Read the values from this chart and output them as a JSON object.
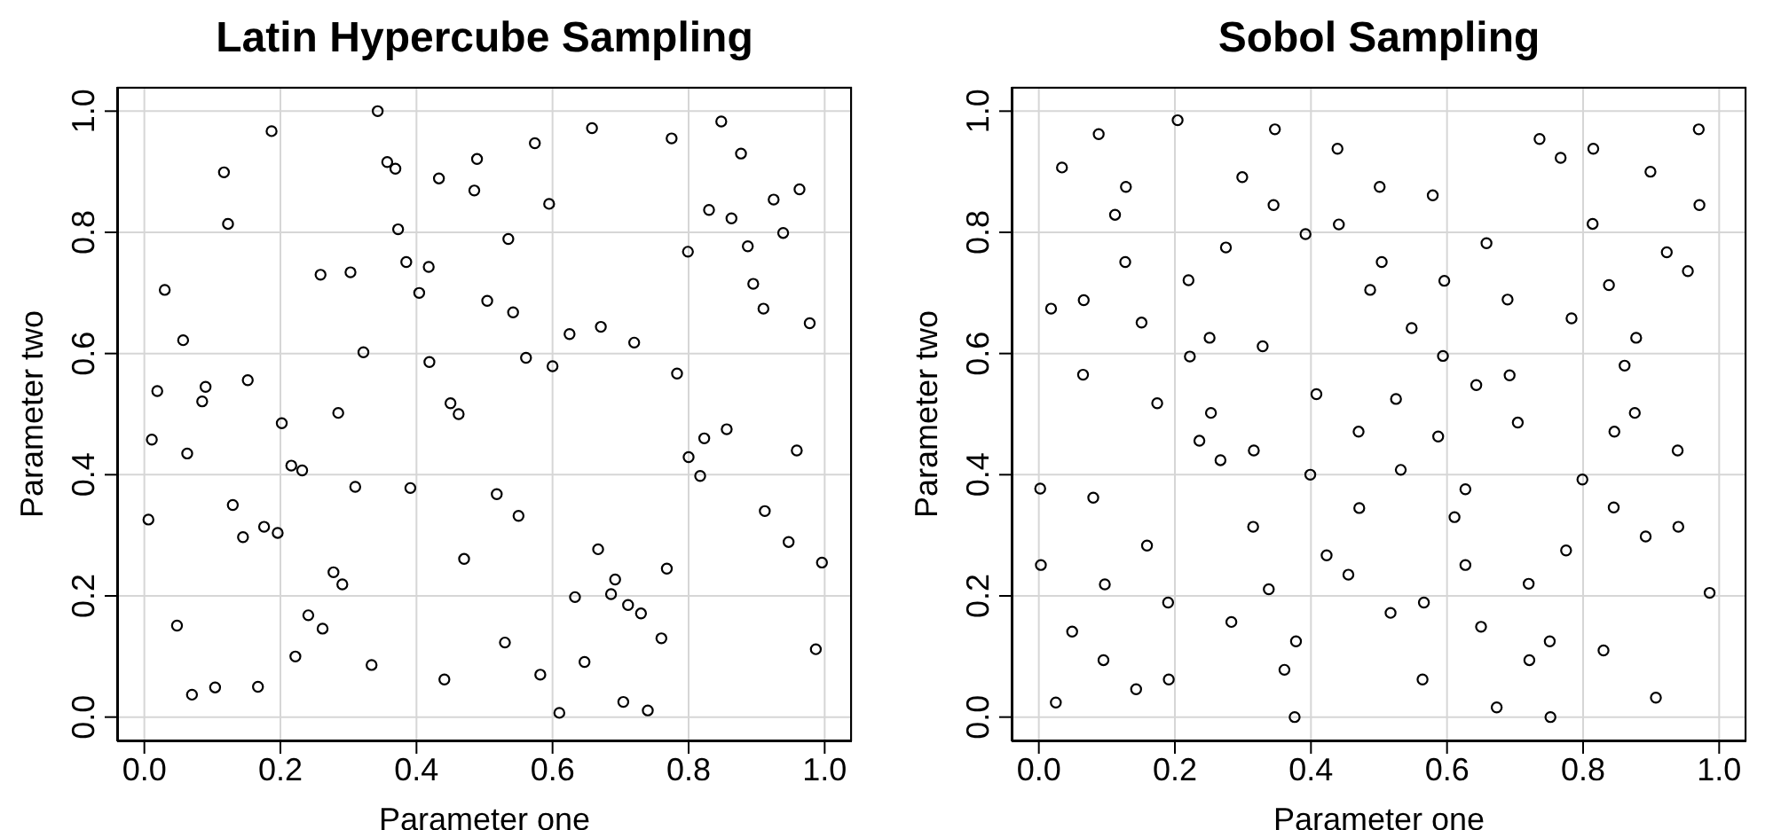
{
  "chart_data": [
    {
      "type": "scatter",
      "title": "Latin Hypercube Sampling",
      "xlabel": "Parameter one",
      "ylabel": "Parameter two",
      "color": "#000000",
      "marker": "circle",
      "grid": true,
      "xlim": [
        -0.04,
        1.04
      ],
      "ylim": [
        -0.04,
        1.04
      ],
      "xticks": [
        {
          "value": 0,
          "label": "0.0"
        },
        {
          "value": 0.2,
          "label": "0.2"
        },
        {
          "value": 0.4,
          "label": "0.4"
        },
        {
          "value": 0.6,
          "label": "0.6"
        },
        {
          "value": 0.8,
          "label": "0.8"
        },
        {
          "value": 1,
          "label": "1.0"
        }
      ],
      "yticks": [
        {
          "value": 0,
          "label": "0.0"
        },
        {
          "value": 0.2,
          "label": "0.2"
        },
        {
          "value": 0.4,
          "label": "0.4"
        },
        {
          "value": 0.6,
          "label": "0.6"
        },
        {
          "value": 0.8,
          "label": "0.8"
        },
        {
          "value": 1,
          "label": "1.0"
        }
      ],
      "x": [
        0.343,
        0.187,
        0.117,
        0.357,
        0.369,
        0.433,
        0.489,
        0.485,
        0.574,
        0.658,
        0.775,
        0.848,
        0.877,
        0.963,
        0.925,
        0.83,
        0.863,
        0.595,
        0.123,
        0.373,
        0.535,
        0.939,
        0.799,
        0.887,
        0.385,
        0.418,
        0.259,
        0.303,
        0.03,
        0.404,
        0.895,
        0.504,
        0.542,
        0.91,
        0.978,
        0.625,
        0.671,
        0.72,
        0.057,
        0.322,
        0.419,
        0.561,
        0.6,
        0.783,
        0.019,
        0.09,
        0.085,
        0.152,
        0.285,
        0.45,
        0.462,
        0.202,
        0.011,
        0.063,
        0.216,
        0.232,
        0.31,
        0.391,
        0.518,
        0.55,
        0.006,
        0.13,
        0.145,
        0.176,
        0.196,
        0.8,
        0.823,
        0.856,
        0.817,
        0.959,
        0.912,
        0.947,
        0.996,
        0.47,
        0.278,
        0.291,
        0.667,
        0.768,
        0.692,
        0.686,
        0.711,
        0.73,
        0.633,
        0.241,
        0.048,
        0.262,
        0.76,
        0.53,
        0.222,
        0.334,
        0.647,
        0.987,
        0.441,
        0.582,
        0.07,
        0.104,
        0.167,
        0.704,
        0.74,
        0.61
      ],
      "values": [
        1.0,
        0.967,
        0.899,
        0.916,
        0.905,
        0.889,
        0.921,
        0.869,
        0.947,
        0.972,
        0.955,
        0.983,
        0.93,
        0.871,
        0.854,
        0.837,
        0.823,
        0.847,
        0.814,
        0.805,
        0.789,
        0.799,
        0.768,
        0.777,
        0.751,
        0.743,
        0.73,
        0.734,
        0.705,
        0.7,
        0.715,
        0.687,
        0.668,
        0.674,
        0.65,
        0.632,
        0.644,
        0.618,
        0.622,
        0.602,
        0.586,
        0.593,
        0.579,
        0.567,
        0.538,
        0.545,
        0.521,
        0.556,
        0.502,
        0.518,
        0.5,
        0.485,
        0.458,
        0.435,
        0.415,
        0.407,
        0.38,
        0.378,
        0.368,
        0.332,
        0.326,
        0.35,
        0.297,
        0.314,
        0.304,
        0.429,
        0.46,
        0.475,
        0.398,
        0.44,
        0.34,
        0.289,
        0.255,
        0.261,
        0.239,
        0.219,
        0.277,
        0.245,
        0.227,
        0.203,
        0.185,
        0.171,
        0.198,
        0.168,
        0.151,
        0.146,
        0.13,
        0.123,
        0.1,
        0.086,
        0.091,
        0.112,
        0.062,
        0.07,
        0.037,
        0.049,
        0.05,
        0.025,
        0.011,
        0.007
      ]
    },
    {
      "type": "scatter",
      "title": "Sobol Sampling",
      "xlabel": "Parameter one",
      "ylabel": "Parameter two",
      "color": "#000000",
      "marker": "circle",
      "grid": true,
      "xlim": [
        -0.04,
        1.04
      ],
      "ylim": [
        -0.04,
        1.04
      ],
      "xticks": [
        {
          "value": 0,
          "label": "0.0"
        },
        {
          "value": 0.2,
          "label": "0.2"
        },
        {
          "value": 0.4,
          "label": "0.4"
        },
        {
          "value": 0.6,
          "label": "0.6"
        },
        {
          "value": 0.8,
          "label": "0.8"
        },
        {
          "value": 1,
          "label": "1.0"
        }
      ],
      "yticks": [
        {
          "value": 0,
          "label": "0.0"
        },
        {
          "value": 0.2,
          "label": "0.2"
        },
        {
          "value": 0.4,
          "label": "0.4"
        },
        {
          "value": 0.6,
          "label": "0.6"
        },
        {
          "value": 0.8,
          "label": "0.8"
        },
        {
          "value": 1,
          "label": "1.0"
        }
      ],
      "x": [
        0.204,
        0.088,
        0.347,
        0.439,
        0.736,
        0.767,
        0.815,
        0.97,
        0.034,
        0.899,
        0.299,
        0.128,
        0.501,
        0.579,
        0.345,
        0.971,
        0.112,
        0.441,
        0.814,
        0.392,
        0.658,
        0.275,
        0.923,
        0.127,
        0.504,
        0.954,
        0.22,
        0.596,
        0.487,
        0.838,
        0.066,
        0.689,
        0.018,
        0.151,
        0.783,
        0.548,
        0.251,
        0.878,
        0.329,
        0.222,
        0.594,
        0.861,
        0.065,
        0.692,
        0.643,
        0.174,
        0.408,
        0.525,
        0.253,
        0.876,
        0.704,
        0.236,
        0.267,
        0.316,
        0.47,
        0.587,
        0.846,
        0.939,
        0.399,
        0.532,
        0.799,
        0.002,
        0.08,
        0.627,
        0.471,
        0.845,
        0.611,
        0.315,
        0.892,
        0.94,
        0.159,
        0.423,
        0.775,
        0.003,
        0.627,
        0.097,
        0.455,
        0.72,
        0.338,
        0.986,
        0.19,
        0.566,
        0.517,
        0.283,
        0.049,
        0.65,
        0.378,
        0.751,
        0.095,
        0.721,
        0.83,
        0.361,
        0.143,
        0.191,
        0.564,
        0.025,
        0.907,
        0.673,
        0.376,
        0.752
      ],
      "values": [
        0.985,
        0.962,
        0.97,
        0.938,
        0.954,
        0.923,
        0.938,
        0.97,
        0.907,
        0.9,
        0.891,
        0.875,
        0.875,
        0.861,
        0.845,
        0.845,
        0.829,
        0.813,
        0.814,
        0.797,
        0.782,
        0.775,
        0.767,
        0.751,
        0.751,
        0.736,
        0.721,
        0.72,
        0.705,
        0.713,
        0.688,
        0.689,
        0.674,
        0.651,
        0.658,
        0.642,
        0.626,
        0.626,
        0.612,
        0.595,
        0.596,
        0.58,
        0.565,
        0.564,
        0.548,
        0.518,
        0.533,
        0.525,
        0.502,
        0.502,
        0.486,
        0.456,
        0.424,
        0.44,
        0.471,
        0.463,
        0.471,
        0.44,
        0.4,
        0.408,
        0.392,
        0.377,
        0.362,
        0.376,
        0.345,
        0.346,
        0.33,
        0.314,
        0.298,
        0.314,
        0.283,
        0.267,
        0.275,
        0.251,
        0.251,
        0.219,
        0.235,
        0.22,
        0.211,
        0.205,
        0.189,
        0.189,
        0.172,
        0.157,
        0.141,
        0.149,
        0.125,
        0.125,
        0.094,
        0.094,
        0.11,
        0.078,
        0.046,
        0.062,
        0.062,
        0.024,
        0.032,
        0.016,
        0.0,
        0.0
      ]
    }
  ]
}
